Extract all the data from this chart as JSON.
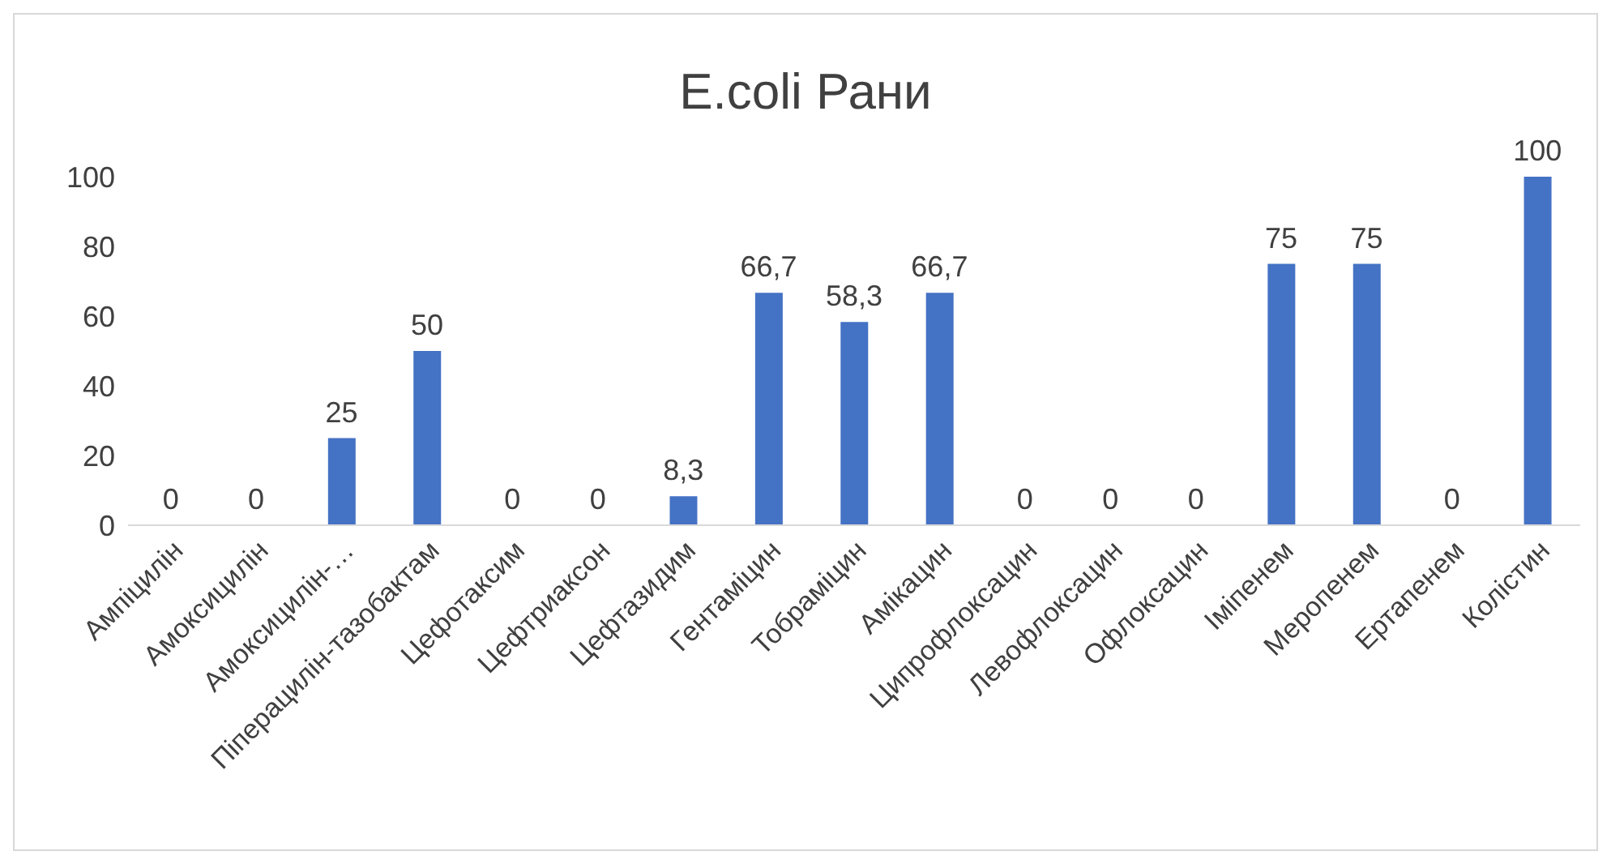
{
  "chart_data": {
    "type": "bar",
    "title": "E.coli Рани",
    "categories": [
      "Ампіцилін",
      "Амоксицилін",
      "Амоксицилін-…",
      "Піперацилін-тазобактам",
      "Цефотаксим",
      "Цефтриаксон",
      "Цефтазидим",
      "Гентаміцин",
      "Тобраміцин",
      "Амікацин",
      "Ципрофлоксацин",
      "Левофлоксацин",
      "Офлоксацин",
      "Іміпенем",
      "Меропенем",
      "Ертапенем",
      "Колістин"
    ],
    "values": [
      0,
      0,
      25,
      50,
      0,
      0,
      8.3,
      66.7,
      58.3,
      66.7,
      0,
      0,
      0,
      75,
      75,
      0,
      100
    ],
    "value_labels": [
      "0",
      "0",
      "25",
      "50",
      "0",
      "0",
      "8,3",
      "66,7",
      "58,3",
      "66,7",
      "0",
      "0",
      "0",
      "75",
      "75",
      "0",
      "100"
    ],
    "color": "#4472c4",
    "ylim": [
      0,
      100
    ],
    "yticks": [
      0,
      20,
      40,
      60,
      80,
      100
    ],
    "grid": false,
    "legend": false
  }
}
